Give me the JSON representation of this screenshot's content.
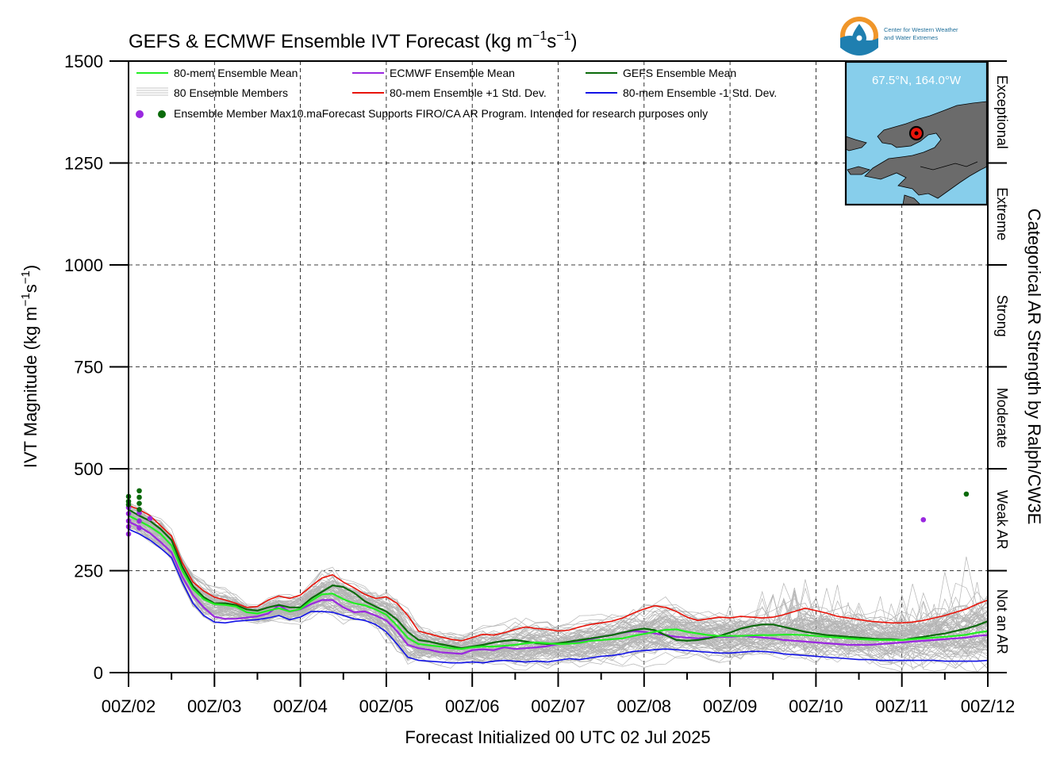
{
  "chart_data": {
    "type": "line",
    "title": "GEFS & ECMWF Ensemble IVT Forecast (kg m",
    "title_units": {
      "exp1": "−1",
      "mid": "s",
      "exp2": "−1",
      "close": ")"
    },
    "ylabel": "IVT Magnitude (kg m",
    "ylabel_units": {
      "exp1": "−1",
      "mid": "s",
      "exp2": "−1",
      "close": ")"
    },
    "xlabel": "Forecast Initialized 00 UTC 02 Jul 2025",
    "right_label": "Categorical AR Strength by Ralph/CW3E",
    "ylim": [
      0,
      1500
    ],
    "yticks": [
      0,
      250,
      500,
      750,
      1000,
      1250,
      1500
    ],
    "ytick_labels": [
      "0",
      "250",
      "500",
      "750",
      "1000",
      "1250",
      "1500"
    ],
    "xlim": [
      0,
      240
    ],
    "xticks": [
      0,
      24,
      48,
      72,
      96,
      120,
      144,
      168,
      192,
      216,
      240
    ],
    "xtick_labels": [
      "00Z/02",
      "00Z/03",
      "00Z/04",
      "00Z/05",
      "00Z/06",
      "00Z/07",
      "00Z/08",
      "00Z/09",
      "00Z/10",
      "00Z/11",
      "00Z/12"
    ],
    "x_step_hours": 3,
    "grid": true,
    "categories_ar": [
      {
        "label": "Not an AR",
        "range": [
          0,
          250
        ]
      },
      {
        "label": "Weak AR",
        "range": [
          250,
          500
        ]
      },
      {
        "label": "Moderate",
        "range": [
          500,
          750
        ]
      },
      {
        "label": "Strong",
        "range": [
          750,
          1000
        ]
      },
      {
        "label": "Extreme",
        "range": [
          1000,
          1250
        ]
      },
      {
        "label": "Exceptional",
        "range": [
          1250,
          1500
        ]
      }
    ],
    "legend": {
      "position": "top-left",
      "entries": [
        {
          "label": "80-mem Ensemble Mean",
          "color": "#22ee22"
        },
        {
          "label": "ECMWF Ensemble Mean",
          "color": "#9a28e0"
        },
        {
          "label": "GEFS Ensemble Mean",
          "color": "#0a6a0a"
        },
        {
          "label": "80 Ensemble Members",
          "color": "#b4b4b4"
        },
        {
          "label": "80-mem Ensemble +1 Std. Dev.",
          "color": "#e8140a"
        },
        {
          "label": "80-mem Ensemble -1 Std. Dev.",
          "color": "#1212e6"
        }
      ],
      "max_label": "Ensemble Member Max10.maForecast Supports FIRO/CA AR Program. Intended for research purposes only"
    },
    "series": [
      {
        "name": "80-mem Ensemble Mean",
        "color": "#22ee22",
        "width": 2.2,
        "values": [
          385,
          372,
          358,
          340,
          312,
          250,
          205,
          180,
          168,
          166,
          162,
          148,
          145,
          152,
          158,
          150,
          156,
          176,
          192,
          194,
          180,
          170,
          165,
          155,
          142,
          115,
          85,
          70,
          67,
          64,
          60,
          58,
          62,
          64,
          64,
          66,
          68,
          72,
          74,
          72,
          70,
          71,
          73,
          78,
          80,
          82,
          84,
          90,
          95,
          100,
          105,
          106,
          100,
          96,
          92,
          90,
          90,
          90,
          91,
          92,
          92,
          93,
          93,
          92,
          90,
          88,
          86,
          84,
          82,
          81,
          80,
          80,
          80,
          82,
          84,
          86,
          88,
          90,
          93,
          98,
          102
        ]
      },
      {
        "name": "ECMWF Ensemble Mean",
        "color": "#9a28e0",
        "width": 2.2,
        "values": [
          370,
          358,
          342,
          320,
          295,
          235,
          190,
          160,
          137,
          132,
          132,
          135,
          138,
          145,
          165,
          150,
          155,
          168,
          178,
          178,
          160,
          148,
          150,
          140,
          128,
          102,
          68,
          60,
          56,
          50,
          48,
          46,
          55,
          57,
          55,
          62,
          58,
          60,
          62,
          65,
          70,
          72,
          75,
          82,
          88,
          92,
          98,
          102,
          100,
          96,
          92,
          88,
          86,
          84,
          86,
          88,
          88,
          90,
          88,
          86,
          84,
          80,
          78,
          76,
          74,
          72,
          70,
          68,
          68,
          68,
          70,
          72,
          74,
          76,
          78,
          80,
          82,
          84,
          86,
          90,
          92
        ]
      },
      {
        "name": "GEFS Ensemble Mean",
        "color": "#0a6a0a",
        "width": 2.2,
        "values": [
          400,
          385,
          372,
          352,
          325,
          260,
          212,
          185,
          170,
          170,
          166,
          155,
          152,
          160,
          166,
          160,
          160,
          182,
          198,
          214,
          210,
          196,
          175,
          162,
          150,
          130,
          100,
          80,
          76,
          70,
          65,
          60,
          64,
          68,
          74,
          78,
          80,
          76,
          72,
          70,
          72,
          76,
          80,
          84,
          88,
          92,
          98,
          104,
          108,
          104,
          92,
          80,
          78,
          80,
          84,
          90,
          98,
          108,
          114,
          118,
          118,
          112,
          106,
          100,
          96,
          92,
          90,
          88,
          86,
          84,
          82,
          82,
          80,
          84,
          88,
          92,
          96,
          102,
          108,
          116,
          126
        ]
      },
      {
        "name": "80-mem Ensemble +1 Std. Dev.",
        "color": "#e8140a",
        "width": 1.6,
        "values": [
          410,
          400,
          385,
          360,
          335,
          270,
          222,
          200,
          185,
          178,
          170,
          160,
          162,
          178,
          188,
          182,
          190,
          212,
          232,
          240,
          222,
          208,
          192,
          182,
          186,
          170,
          140,
          102,
          95,
          88,
          82,
          78,
          86,
          94,
          92,
          98,
          106,
          112,
          108,
          106,
          102,
          104,
          112,
          118,
          122,
          126,
          134,
          146,
          156,
          164,
          160,
          150,
          136,
          128,
          132,
          136,
          134,
          138,
          136,
          134,
          136,
          142,
          150,
          158,
          152,
          146,
          138,
          134,
          130,
          126,
          124,
          122,
          122,
          124,
          128,
          134,
          140,
          148,
          156,
          168,
          178
        ]
      },
      {
        "name": "80-mem Ensemble -1 Std. Dev.",
        "color": "#1212e6",
        "width": 1.6,
        "values": [
          352,
          340,
          325,
          305,
          282,
          222,
          170,
          140,
          124,
          122,
          126,
          128,
          130,
          134,
          140,
          130,
          136,
          150,
          150,
          148,
          140,
          132,
          128,
          118,
          100,
          70,
          38,
          30,
          28,
          26,
          24,
          24,
          26,
          24,
          28,
          30,
          28,
          26,
          28,
          26,
          30,
          34,
          32,
          36,
          40,
          42,
          46,
          52,
          54,
          56,
          58,
          56,
          54,
          52,
          50,
          48,
          48,
          50,
          52,
          52,
          50,
          46,
          44,
          42,
          40,
          38,
          36,
          34,
          32,
          32,
          30,
          30,
          30,
          30,
          30,
          30,
          28,
          28,
          28,
          28,
          30
        ]
      }
    ],
    "members": {
      "count": 80,
      "color": "#b4b4b4",
      "seed": 7
    },
    "max_points": [
      {
        "x": 0,
        "y": 405,
        "color": "#9a28e0"
      },
      {
        "x": 0,
        "y": 390,
        "color": "#9a28e0"
      },
      {
        "x": 0,
        "y": 372,
        "color": "#9a28e0"
      },
      {
        "x": 0,
        "y": 358,
        "color": "#9a28e0"
      },
      {
        "x": 0,
        "y": 340,
        "color": "#9a28e0"
      },
      {
        "x": 0,
        "y": 432,
        "color": "#0a6a0a"
      },
      {
        "x": 0,
        "y": 420,
        "color": "#0a6a0a"
      },
      {
        "x": 0,
        "y": 412,
        "color": "#0a6a0a"
      },
      {
        "x": 3,
        "y": 392,
        "color": "#9a28e0"
      },
      {
        "x": 3,
        "y": 372,
        "color": "#9a28e0"
      },
      {
        "x": 3,
        "y": 355,
        "color": "#9a28e0"
      },
      {
        "x": 3,
        "y": 446,
        "color": "#0a6a0a"
      },
      {
        "x": 3,
        "y": 430,
        "color": "#0a6a0a"
      },
      {
        "x": 3,
        "y": 415,
        "color": "#0a6a0a"
      },
      {
        "x": 3,
        "y": 400,
        "color": "#0a6a0a"
      },
      {
        "x": 6,
        "y": 378,
        "color": "#9a28e0"
      },
      {
        "x": 222,
        "y": 375,
        "color": "#9a28e0"
      },
      {
        "x": 234,
        "y": 438,
        "color": "#0a6a0a"
      }
    ]
  },
  "inset_map": {
    "location": "67.5°N, 164.0°W",
    "sea_color": "#87ceeb",
    "land_color": "#6b6b6b"
  },
  "logo": {
    "line1": "Center for Western Weather",
    "line2": "and Water Extremes"
  }
}
